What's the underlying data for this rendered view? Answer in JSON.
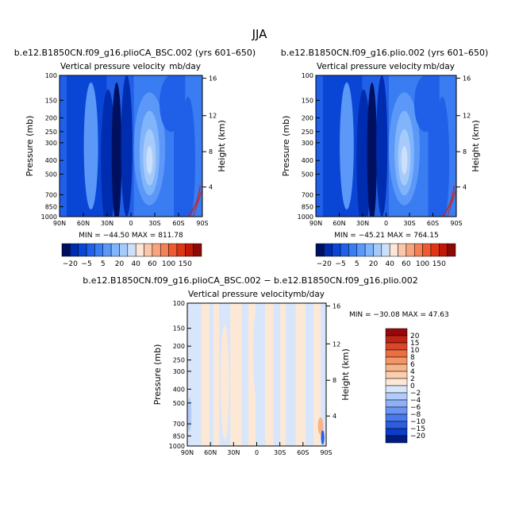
{
  "figure_title": "JJA",
  "colors": {
    "scale_neg": [
      "#001060",
      "#002cb0",
      "#0a46d6",
      "#2060e8",
      "#3a7cf2",
      "#5b98f7",
      "#80b4fb",
      "#a6cbfb",
      "#cde0fb"
    ],
    "scale_pos": [
      "#fde6d8",
      "#fbc7ab",
      "#f8a47f",
      "#f58055",
      "#ef5a32",
      "#de3515",
      "#c2180a",
      "#8c0a06"
    ],
    "diff_neg": [
      "#001c80",
      "#0a3ec8",
      "#2f5de0",
      "#4b78ea",
      "#6a94f2",
      "#8eb0f6",
      "#b2cbf8",
      "#d8e6fb"
    ],
    "diff_pos": [
      "#fde8d6",
      "#fbcfae",
      "#f7b48a",
      "#f39566",
      "#ea7044",
      "#d9472a",
      "#bf2414",
      "#98080a"
    ],
    "contour_line": "#d02010"
  },
  "chart_data": [
    {
      "type": "heatmap",
      "title": "b.e12.B1850CN.f09_g16.plioCA_BSC.002 (yrs 601–650)",
      "subtitle": "Vertical pressure velocity",
      "units": "mb/day",
      "xlabel": "",
      "ylabel": "Pressure (mb)",
      "y2label": "Height (km)",
      "x_ticks": [
        "90N",
        "60N",
        "30N",
        "0",
        "30S",
        "60S",
        "90S"
      ],
      "y_ticks": [
        "100",
        "150",
        "200",
        "250",
        "300",
        "400",
        "500",
        "700",
        "850",
        "1000"
      ],
      "y2_ticks": [
        "16",
        "12",
        "8",
        "4"
      ],
      "stats": "MIN = −44.50   MAX = 811.78",
      "colorbar_labels": [
        "−20",
        "−5",
        "5",
        "20",
        "40",
        "60",
        "100",
        "150"
      ],
      "ylim": [
        1000,
        100
      ],
      "xlim": [
        90,
        -90
      ]
    },
    {
      "type": "heatmap",
      "title": "b.e12.B1850CN.f09_g16.plio.002 (yrs 601–650)",
      "subtitle": "Vertical pressure velocity",
      "units": "mb/day",
      "xlabel": "",
      "ylabel": "Pressure (mb)",
      "y2label": "Height (km)",
      "x_ticks": [
        "90N",
        "60N",
        "30N",
        "0",
        "30S",
        "60S",
        "90S"
      ],
      "y_ticks": [
        "100",
        "150",
        "200",
        "250",
        "300",
        "400",
        "500",
        "700",
        "850",
        "1000"
      ],
      "y2_ticks": [
        "16",
        "12",
        "8",
        "4"
      ],
      "stats": "MIN = −45.21   MAX = 764.15",
      "colorbar_labels": [
        "−20",
        "−5",
        "5",
        "20",
        "40",
        "60",
        "100",
        "150"
      ],
      "ylim": [
        1000,
        100
      ],
      "xlim": [
        90,
        -90
      ]
    },
    {
      "type": "heatmap",
      "title": "b.e12.B1850CN.f09_g16.plioCA_BSC.002 − b.e12.B1850CN.f09_g16.plio.002",
      "subtitle": "Vertical pressure velocity",
      "units": "mb/day",
      "xlabel": "",
      "ylabel": "Pressure (mb)",
      "y2label": "Height (km)",
      "x_ticks": [
        "90N",
        "60N",
        "30N",
        "0",
        "30S",
        "60S",
        "90S"
      ],
      "y_ticks": [
        "100",
        "150",
        "200",
        "250",
        "300",
        "400",
        "500",
        "700",
        "850",
        "1000"
      ],
      "y2_ticks": [
        "16",
        "12",
        "8",
        "4"
      ],
      "stats": "MIN = −30.08   MAX =  47.63",
      "colorbar_labels": [
        "20",
        "15",
        "10",
        "8",
        "6",
        "4",
        "2",
        "0",
        "−2",
        "−4",
        "−6",
        "−8",
        "−10",
        "−15",
        "−20"
      ],
      "ylim": [
        1000,
        100
      ],
      "xlim": [
        90,
        -90
      ]
    }
  ]
}
